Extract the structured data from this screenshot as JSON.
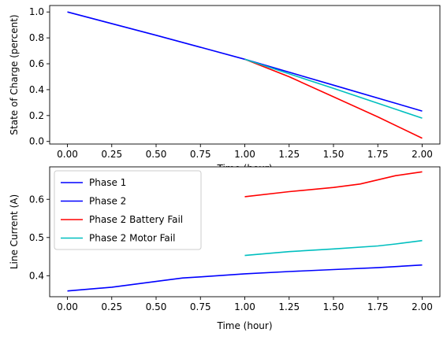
{
  "chart_data": [
    {
      "type": "line",
      "ylabel": "State of Charge (percent)",
      "xlabel": "Time (hour)",
      "xlim": [
        -0.1,
        2.1
      ],
      "ylim": [
        -0.02,
        1.05
      ],
      "xticks": [
        0.0,
        0.25,
        0.5,
        0.75,
        1.0,
        1.25,
        1.5,
        1.75,
        2.0
      ],
      "xtick_labels": [
        "0.00",
        "0.25",
        "0.50",
        "0.75",
        "1.00",
        "1.25",
        "1.50",
        "1.75",
        "2.00"
      ],
      "yticks": [
        0.0,
        0.2,
        0.4,
        0.6,
        0.8,
        1.0
      ],
      "ytick_labels": [
        "0.0",
        "0.2",
        "0.4",
        "0.6",
        "0.8",
        "1.0"
      ],
      "grid": false,
      "legend": false,
      "series": [
        {
          "color": "#0000ff",
          "x": [
            0.0,
            0.5,
            1.0
          ],
          "y": [
            1.0,
            0.82,
            0.635
          ]
        },
        {
          "color": "#0000ff",
          "x": [
            1.0,
            1.5,
            2.0
          ],
          "y": [
            0.635,
            0.435,
            0.235
          ]
        },
        {
          "color": "#ff0000",
          "x": [
            1.0,
            1.25,
            1.5,
            1.75,
            2.0
          ],
          "y": [
            0.635,
            0.5,
            0.345,
            0.19,
            0.025
          ]
        },
        {
          "color": "#00bfbf",
          "x": [
            1.0,
            1.5,
            2.0
          ],
          "y": [
            0.635,
            0.41,
            0.18
          ]
        }
      ]
    },
    {
      "type": "line",
      "ylabel": "Line Current (A)",
      "xlabel": "Time (hour)",
      "xlim": [
        -0.1,
        2.1
      ],
      "ylim": [
        0.345,
        0.685
      ],
      "xticks": [
        0.0,
        0.25,
        0.5,
        0.75,
        1.0,
        1.25,
        1.5,
        1.75,
        2.0
      ],
      "xtick_labels": [
        "0.00",
        "0.25",
        "0.50",
        "0.75",
        "1.00",
        "1.25",
        "1.50",
        "1.75",
        "2.00"
      ],
      "yticks": [
        0.4,
        0.5,
        0.6
      ],
      "ytick_labels": [
        "0.4",
        "0.5",
        "0.6"
      ],
      "grid": false,
      "legend": true,
      "legend_position": "upper-left",
      "series": [
        {
          "name": "Phase 1",
          "color": "#0000ff",
          "x": [
            0.0,
            0.25,
            0.5,
            0.65,
            0.75,
            1.0
          ],
          "y": [
            0.36,
            0.37,
            0.385,
            0.394,
            0.397,
            0.405
          ]
        },
        {
          "name": "Phase 2",
          "color": "#0000ff",
          "x": [
            1.0,
            1.25,
            1.5,
            1.75,
            2.0
          ],
          "y": [
            0.405,
            0.411,
            0.416,
            0.421,
            0.428
          ]
        },
        {
          "name": "Phase 2 Battery Fail",
          "color": "#ff0000",
          "x": [
            1.0,
            1.25,
            1.5,
            1.65,
            1.85,
            2.0
          ],
          "y": [
            0.607,
            0.62,
            0.631,
            0.64,
            0.662,
            0.672
          ]
        },
        {
          "name": "Phase 2 Motor Fail",
          "color": "#00bfbf",
          "x": [
            1.0,
            1.25,
            1.5,
            1.75,
            1.85,
            2.0
          ],
          "y": [
            0.453,
            0.463,
            0.47,
            0.478,
            0.483,
            0.492
          ]
        }
      ]
    }
  ]
}
